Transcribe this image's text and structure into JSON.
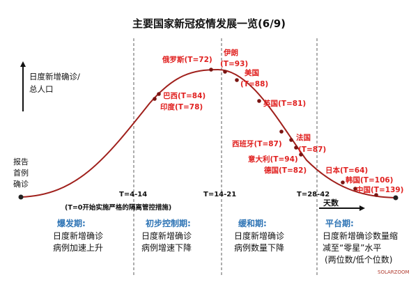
{
  "title": "主要国家新冠疫情发展一览(6/9)",
  "y_label": [
    "日度新增确诊/",
    "总人口"
  ],
  "report_label": [
    "报告",
    "首例",
    "确诊"
  ],
  "x_label": "天数",
  "note": "(T=0开始实施严格的隔离管控措施)",
  "boundaries": [
    {
      "label": "T=4-14"
    },
    {
      "label": "T=14-21"
    },
    {
      "label": "T=28-42"
    }
  ],
  "countries": [
    {
      "label": "俄罗斯(T=72)"
    },
    {
      "label": "伊朗"
    },
    {
      "label": "(T=93)"
    },
    {
      "label": "美国"
    },
    {
      "label": "(T=88)"
    },
    {
      "label": "巴西(T=84)"
    },
    {
      "label": "印度(T=78)"
    },
    {
      "label": "英国(T=81)"
    },
    {
      "label": "西班牙(T=87)"
    },
    {
      "label": "法国"
    },
    {
      "label": "(T=87)"
    },
    {
      "label": "意大利(T=94)"
    },
    {
      "label": "德国(T=82)"
    },
    {
      "label": "日本(T=64)"
    },
    {
      "label": "韩国(T=106)"
    },
    {
      "label": "中国(T=139)"
    }
  ],
  "phases": [
    {
      "name": "爆发期:",
      "desc": [
        "日度新增确诊",
        "病例加速上升"
      ]
    },
    {
      "name": "初步控制期:",
      "desc": [
        "日度新增确诊",
        "病例增速下降"
      ]
    },
    {
      "name": "缓和期:",
      "desc": [
        "日度新增确诊",
        "病例数量下降"
      ]
    },
    {
      "name": "平台期:",
      "desc": [
        "日度新增确诊数量缩",
        "减至“零星”水平",
        "(两位数/低个位数)"
      ]
    }
  ],
  "watermark": "SOLARZOOM",
  "colors": {
    "curve": "#a0201c",
    "dot": "#7a1512",
    "label": "#e0201f",
    "phase": "#2e74b5",
    "axis": "#111111",
    "dash": "#777777"
  }
}
